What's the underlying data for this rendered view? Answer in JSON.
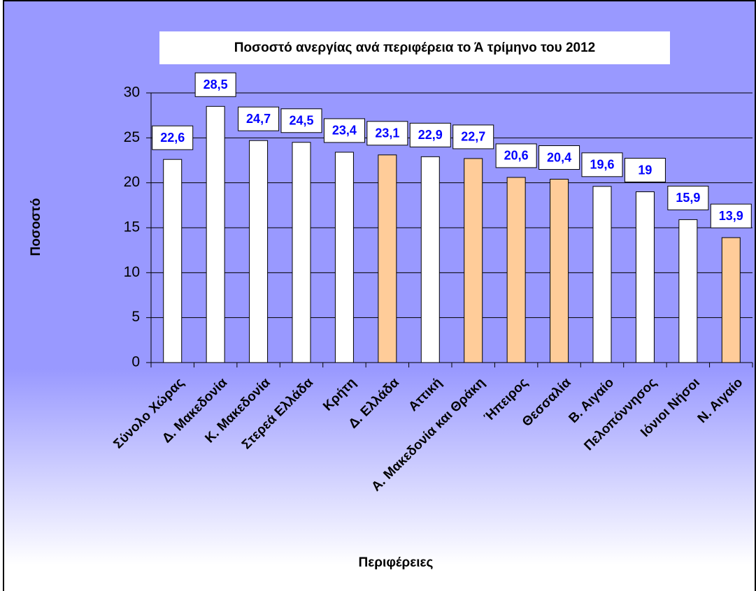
{
  "chart_data": {
    "type": "bar",
    "title": "Ποσοστό ανεργίας ανά περιφέρεια το Ά τρίμηνο του 2012",
    "y_label": "Ποσοστό",
    "x_label": "Περιφέρειες",
    "categories": [
      "Σύνολο Χώρας",
      "Δ. Μακεδονία",
      "Κ. Μακεδονία",
      "Στερεά Ελλάδα",
      "Κρήτη",
      "Δ. Ελλάδα",
      "Αττική",
      "Α. Μακεδονία και Θράκη",
      "Ήπειρος",
      "Θεσσαλία",
      "Β. Αιγαίο",
      "Πελοπόννησος",
      "Ιόνιοι Νήσοι",
      "Ν. Αιγαίο"
    ],
    "values": [
      22.6,
      28.5,
      24.7,
      24.5,
      23.4,
      23.1,
      22.9,
      22.7,
      20.6,
      20.4,
      19.6,
      19,
      15.9,
      13.9
    ],
    "value_labels": [
      "22,6",
      "28,5",
      "24,7",
      "24,5",
      "23,4",
      "23,1",
      "22,9",
      "22,7",
      "20,6",
      "20,4",
      "19,6",
      "19",
      "15,9",
      "13,9"
    ],
    "colors": [
      "#ffffff",
      "#ffffff",
      "#ffffff",
      "#ffffff",
      "#ffffff",
      "#ffcc99",
      "#ffffff",
      "#ffcc99",
      "#ffcc99",
      "#ffcc99",
      "#ffffff",
      "#ffffff",
      "#ffffff",
      "#ffcc99"
    ],
    "ylim": [
      0,
      30
    ],
    "yticks": [
      0,
      5,
      10,
      15,
      20,
      25,
      30
    ],
    "grid": true
  }
}
